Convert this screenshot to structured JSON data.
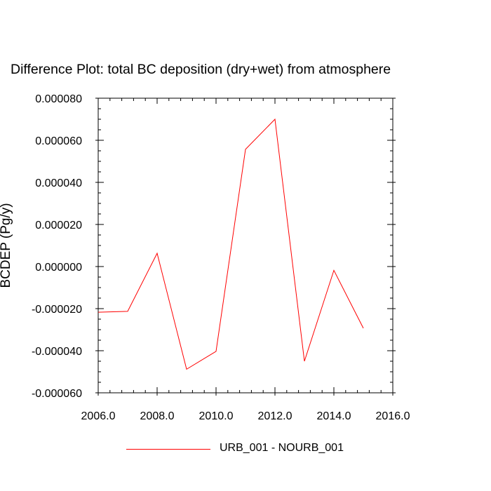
{
  "chart_data": {
    "type": "line",
    "title": "Difference Plot: total BC deposition (dry+wet) from atmosphere",
    "xlabel": "",
    "ylabel": "BCDEP (Pg/y)",
    "xlim": [
      2006.0,
      2016.0
    ],
    "ylim": [
      -6e-05,
      8e-05
    ],
    "xticks": [
      "2006.0",
      "2008.0",
      "2010.0",
      "2012.0",
      "2014.0",
      "2016.0"
    ],
    "yticks": [
      "-0.000060",
      "-0.000040",
      "-0.000020",
      "0.000000",
      "0.000020",
      "0.000040",
      "0.000060",
      "0.000080"
    ],
    "grid": false,
    "legend_position": "bottom-center",
    "series": [
      {
        "name": "URB_001 - NOURB_001",
        "color": "#ff0000",
        "x": [
          2006,
          2007,
          2008,
          2009,
          2010,
          2011,
          2012,
          2013,
          2014,
          2015
        ],
        "y": [
          -2.17e-05,
          -2.13e-05,
          6.3e-06,
          -4.88e-05,
          -4.03e-05,
          5.57e-05,
          7e-05,
          -4.5e-05,
          -1.8e-06,
          -2.93e-05
        ]
      }
    ]
  }
}
